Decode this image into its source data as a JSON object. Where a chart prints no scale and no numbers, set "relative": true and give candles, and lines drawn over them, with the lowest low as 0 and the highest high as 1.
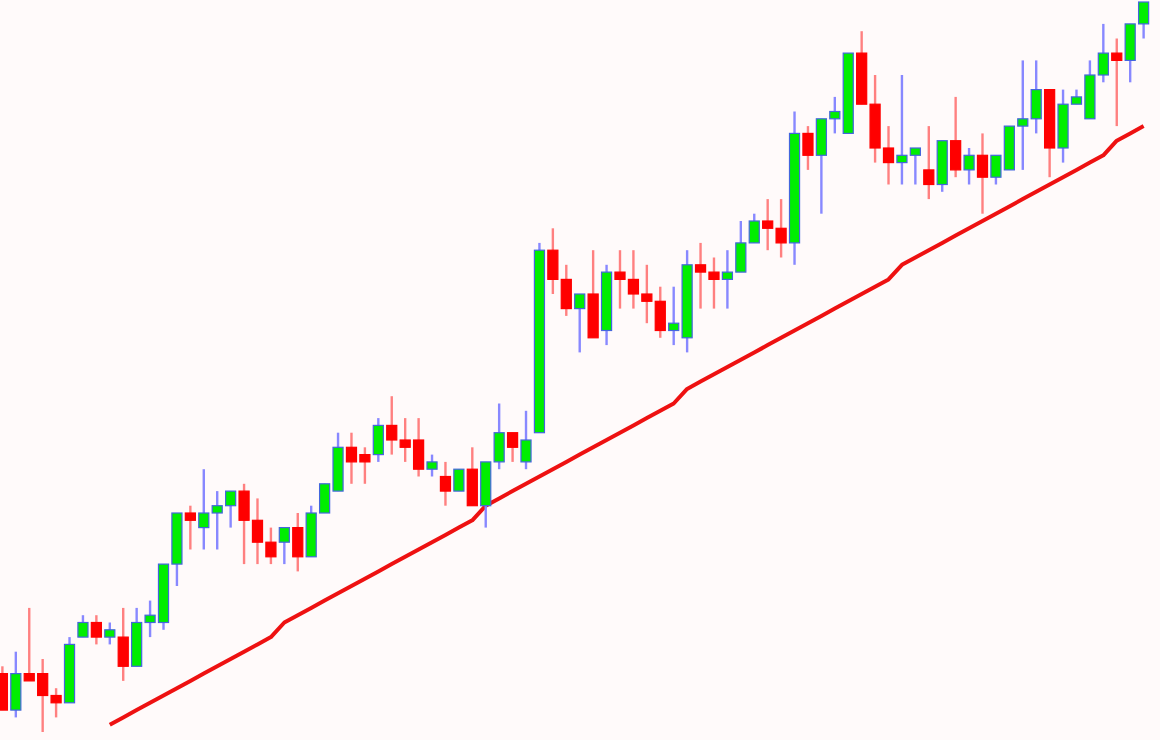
{
  "chart_data": {
    "type": "candlestick",
    "relative": true,
    "categories": [
      null,
      null,
      null,
      null,
      null,
      null,
      null,
      null,
      null,
      null,
      null,
      null,
      null,
      null,
      null,
      null,
      null,
      null,
      null,
      null,
      null,
      null,
      null,
      null,
      null,
      null,
      null,
      null,
      null,
      null,
      null,
      null,
      null,
      null,
      null,
      null,
      null,
      null,
      null,
      null,
      null,
      null,
      null,
      null,
      null,
      null,
      null,
      null,
      null,
      null,
      null,
      null,
      null,
      null,
      null,
      null,
      null,
      null,
      null,
      null,
      null,
      null,
      null,
      null,
      null,
      null,
      null,
      null,
      null,
      null,
      null,
      null,
      null,
      null,
      null,
      null,
      null,
      null,
      null,
      null,
      null,
      null,
      null,
      null,
      null,
      null
    ],
    "series": [
      {
        "colors": [
          "#ff0000",
          "#00ee00",
          "#ff0000",
          "#ff0000",
          "#ff0000",
          "#00ee00",
          "#00ee00",
          "#ff0000",
          "#00ee00",
          "#ff0000",
          "#00ee00",
          "#00ee00",
          "#00ee00",
          "#00ee00",
          "#ff0000",
          "#00ee00",
          "#00ee00",
          "#00ee00",
          "#ff0000",
          "#ff0000",
          "#ff0000",
          "#00ee00",
          "#ff0000",
          "#00ee00",
          "#00ee00",
          "#00ee00",
          "#ff0000",
          "#ff0000",
          "#00ee00",
          "#ff0000",
          "#ff0000",
          "#ff0000",
          "#00ee00",
          "#ff0000",
          "#00ee00",
          "#ff0000",
          "#00ee00",
          "#00ee00",
          "#ff0000",
          "#00ee00",
          "#00ee00",
          "#ff0000",
          "#ff0000",
          "#00ee00",
          "#ff0000",
          "#00ee00",
          "#ff0000",
          "#ff0000",
          "#ff0000",
          "#ff0000",
          "#00ee00",
          "#00ee00",
          "#ff0000",
          "#ff0000",
          "#00ee00",
          "#00ee00",
          "#00ee00",
          "#ff0000",
          "#ff0000",
          "#00ee00",
          "#ff0000",
          "#00ee00",
          "#00ee00",
          "#00ee00",
          "#ff0000",
          "#ff0000",
          "#ff0000",
          "#00ee00",
          "#00ee00",
          "#ff0000",
          "#00ee00",
          "#ff0000",
          "#00ee00",
          "#ff0000",
          "#00ee00",
          "#00ee00",
          "#00ee00",
          "#00ee00",
          "#ff0000",
          "#00ee00",
          "#00ee00",
          "#00ee00",
          "#00ee00",
          "#ff0000",
          "#00ee00",
          "#00ee00"
        ],
        "ohlc": [
          [
            0.08,
            0.09,
            0.03,
            0.03
          ],
          [
            0.03,
            0.11,
            0.02,
            0.08
          ],
          [
            0.08,
            0.17,
            0.07,
            0.07
          ],
          [
            0.08,
            0.1,
            0.0,
            0.05
          ],
          [
            0.05,
            0.06,
            0.02,
            0.04
          ],
          [
            0.04,
            0.13,
            0.04,
            0.12
          ],
          [
            0.13,
            0.16,
            0.13,
            0.15
          ],
          [
            0.15,
            0.16,
            0.12,
            0.13
          ],
          [
            0.13,
            0.15,
            0.12,
            0.14
          ],
          [
            0.13,
            0.17,
            0.07,
            0.09
          ],
          [
            0.09,
            0.17,
            0.09,
            0.15
          ],
          [
            0.15,
            0.18,
            0.13,
            0.16
          ],
          [
            0.15,
            0.23,
            0.14,
            0.23
          ],
          [
            0.23,
            0.3,
            0.2,
            0.3
          ],
          [
            0.3,
            0.31,
            0.25,
            0.29
          ],
          [
            0.28,
            0.36,
            0.25,
            0.3
          ],
          [
            0.3,
            0.33,
            0.25,
            0.31
          ],
          [
            0.31,
            0.33,
            0.28,
            0.33
          ],
          [
            0.33,
            0.34,
            0.23,
            0.29
          ],
          [
            0.29,
            0.32,
            0.23,
            0.26
          ],
          [
            0.26,
            0.28,
            0.23,
            0.24
          ],
          [
            0.26,
            0.28,
            0.23,
            0.28
          ],
          [
            0.28,
            0.3,
            0.22,
            0.24
          ],
          [
            0.24,
            0.31,
            0.24,
            0.3
          ],
          [
            0.3,
            0.34,
            0.3,
            0.34
          ],
          [
            0.33,
            0.41,
            0.33,
            0.39
          ],
          [
            0.39,
            0.41,
            0.34,
            0.37
          ],
          [
            0.38,
            0.39,
            0.34,
            0.37
          ],
          [
            0.38,
            0.43,
            0.37,
            0.42
          ],
          [
            0.42,
            0.46,
            0.38,
            0.4
          ],
          [
            0.4,
            0.43,
            0.37,
            0.39
          ],
          [
            0.4,
            0.43,
            0.35,
            0.36
          ],
          [
            0.36,
            0.38,
            0.35,
            0.37
          ],
          [
            0.35,
            0.37,
            0.31,
            0.33
          ],
          [
            0.33,
            0.36,
            0.33,
            0.36
          ],
          [
            0.36,
            0.39,
            0.31,
            0.31
          ],
          [
            0.31,
            0.37,
            0.28,
            0.37
          ],
          [
            0.37,
            0.45,
            0.36,
            0.41
          ],
          [
            0.41,
            0.41,
            0.37,
            0.39
          ],
          [
            0.37,
            0.44,
            0.36,
            0.4
          ],
          [
            0.41,
            0.67,
            0.41,
            0.66
          ],
          [
            0.66,
            0.69,
            0.6,
            0.62
          ],
          [
            0.62,
            0.64,
            0.57,
            0.58
          ],
          [
            0.58,
            0.6,
            0.52,
            0.6
          ],
          [
            0.6,
            0.66,
            0.54,
            0.54
          ],
          [
            0.55,
            0.64,
            0.53,
            0.63
          ],
          [
            0.63,
            0.66,
            0.58,
            0.62
          ],
          [
            0.62,
            0.66,
            0.58,
            0.6
          ],
          [
            0.6,
            0.64,
            0.56,
            0.59
          ],
          [
            0.59,
            0.61,
            0.54,
            0.55
          ],
          [
            0.55,
            0.61,
            0.53,
            0.56
          ],
          [
            0.54,
            0.66,
            0.52,
            0.64
          ],
          [
            0.64,
            0.67,
            0.58,
            0.63
          ],
          [
            0.63,
            0.65,
            0.58,
            0.62
          ],
          [
            0.62,
            0.66,
            0.58,
            0.63
          ],
          [
            0.63,
            0.7,
            0.63,
            0.67
          ],
          [
            0.67,
            0.71,
            0.67,
            0.7
          ],
          [
            0.7,
            0.73,
            0.66,
            0.69
          ],
          [
            0.69,
            0.73,
            0.65,
            0.67
          ],
          [
            0.67,
            0.85,
            0.64,
            0.82
          ],
          [
            0.82,
            0.83,
            0.77,
            0.79
          ],
          [
            0.79,
            0.84,
            0.71,
            0.84
          ],
          [
            0.84,
            0.87,
            0.82,
            0.85
          ],
          [
            0.82,
            0.93,
            0.82,
            0.93
          ],
          [
            0.93,
            0.96,
            0.86,
            0.86
          ],
          [
            0.86,
            0.9,
            0.78,
            0.8
          ],
          [
            0.8,
            0.83,
            0.75,
            0.78
          ],
          [
            0.78,
            0.9,
            0.75,
            0.79
          ],
          [
            0.79,
            0.8,
            0.75,
            0.8
          ],
          [
            0.77,
            0.83,
            0.73,
            0.75
          ],
          [
            0.75,
            0.81,
            0.74,
            0.81
          ],
          [
            0.81,
            0.87,
            0.76,
            0.77
          ],
          [
            0.77,
            0.8,
            0.75,
            0.79
          ],
          [
            0.79,
            0.82,
            0.71,
            0.76
          ],
          [
            0.76,
            0.79,
            0.75,
            0.79
          ],
          [
            0.77,
            0.83,
            0.77,
            0.83
          ],
          [
            0.83,
            0.92,
            0.77,
            0.84
          ],
          [
            0.84,
            0.92,
            0.82,
            0.88
          ],
          [
            0.88,
            0.88,
            0.76,
            0.8
          ],
          [
            0.8,
            0.88,
            0.78,
            0.86
          ],
          [
            0.86,
            0.88,
            0.86,
            0.87
          ],
          [
            0.84,
            0.92,
            0.84,
            0.9
          ],
          [
            0.9,
            0.97,
            0.89,
            0.93
          ],
          [
            0.93,
            0.95,
            0.83,
            0.92
          ],
          [
            0.92,
            0.97,
            0.89,
            0.97
          ],
          [
            0.97,
            1.0,
            0.95,
            1.0
          ]
        ]
      },
      {
        "type": "line",
        "color": "#ee1111",
        "line_style": "solid",
        "values": [
          null,
          null,
          null,
          null,
          null,
          null,
          null,
          null,
          0.01,
          0.02,
          0.03,
          0.04,
          0.05,
          0.06,
          0.07,
          0.08,
          0.09,
          0.1,
          0.11,
          0.12,
          0.13,
          0.15,
          0.16,
          0.17,
          0.18,
          0.19,
          0.2,
          0.21,
          0.22,
          0.23,
          0.24,
          0.25,
          0.26,
          0.27,
          0.28,
          0.29,
          0.31,
          0.32,
          0.33,
          0.34,
          0.35,
          0.36,
          0.37,
          0.38,
          0.39,
          0.4,
          0.41,
          0.42,
          0.43,
          0.44,
          0.45,
          0.47,
          0.48,
          0.49,
          0.5,
          0.51,
          0.52,
          0.53,
          0.54,
          0.55,
          0.56,
          0.57,
          0.58,
          0.59,
          0.6,
          0.61,
          0.62,
          0.64,
          0.65,
          0.66,
          0.67,
          0.68,
          0.69,
          0.7,
          0.71,
          0.72,
          0.73,
          0.74,
          0.75,
          0.76,
          0.77,
          0.78,
          0.79,
          0.81,
          0.82,
          0.83
        ]
      }
    ]
  }
}
